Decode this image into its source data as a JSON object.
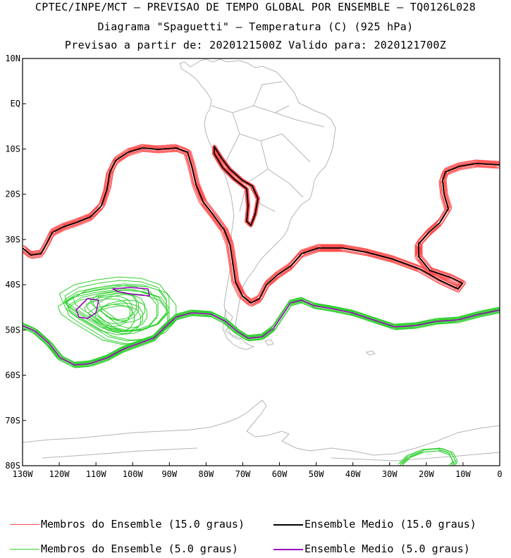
{
  "header": {
    "line1": "CPTEC/INPE/MCT – PREVISAO DE TEMPO GLOBAL POR ENSEMBLE – TQ0126L028",
    "line2": "Diagrama \"Spaguetti\" – Temperatura (C) (925 hPa)",
    "line3": "Previsao a partir de: 2020121500Z  Valido para: 2020121700Z"
  },
  "map": {
    "lon_range": [
      -130,
      0
    ],
    "lat_range": [
      -80,
      10
    ],
    "lat_ticks": [
      "10N",
      "EQ",
      "10S",
      "20S",
      "30S",
      "40S",
      "50S",
      "60S",
      "70S",
      "80S"
    ],
    "lon_ticks": [
      "130W",
      "120W",
      "110W",
      "100W",
      "90W",
      "80W",
      "70W",
      "60W",
      "50W",
      "40W",
      "30W",
      "20W",
      "10W",
      "0"
    ],
    "coastline_color": "#b4b4b4"
  },
  "legend": {
    "items": [
      {
        "label": "Membros do Ensemble (15.0 graus)",
        "color": "#ff5050"
      },
      {
        "label": "Ensemble Medio (15.0 graus)",
        "color": "#000000"
      },
      {
        "label": "Membros do Ensemble (5.0 graus)",
        "color": "#30d030"
      },
      {
        "label": "Ensemble Medio (5.0 graus)",
        "color": "#a000c0"
      }
    ]
  }
}
